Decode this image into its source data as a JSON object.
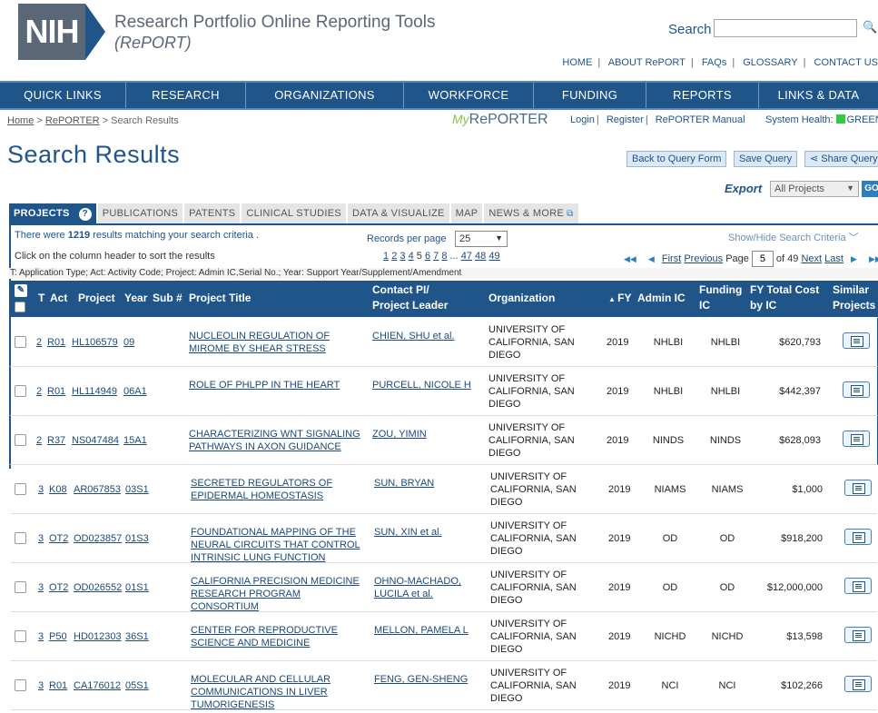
{
  "header": {
    "logo_text": "NIH",
    "title": "Research Portfolio Online Reporting Tools",
    "subtitle": "(RePORT)",
    "search_label": "Search",
    "search_placeholder": "",
    "links": [
      "HOME",
      "ABOUT RePORT",
      "FAQs",
      "GLOSSARY",
      "CONTACT US"
    ]
  },
  "nav": [
    "QUICK LINKS",
    "RESEARCH",
    "ORGANIZATIONS",
    "WORKFORCE",
    "FUNDING",
    "REPORTS",
    "LINKS & DATA"
  ],
  "breadcrumb": {
    "home": "Home",
    "reporter": "RePORTER",
    "current": "Search Results",
    "sep": ">"
  },
  "myreporter": {
    "my": "My",
    "name": "RePORTER"
  },
  "account": {
    "login": "Login",
    "register": "Register",
    "manual": "RePORTER Manual",
    "health": "System Health:",
    "health_status": "GREEN",
    "health_color": "#2ecc40"
  },
  "page_title": "Search Results",
  "buttons": {
    "back": "Back to Query Form",
    "save": "Save Query",
    "share": "Share Query"
  },
  "export": {
    "label": "Export",
    "selected": "All Projects",
    "go": "GO"
  },
  "tabs": [
    "PROJECTS",
    "PUBLICATIONS",
    "PATENTS",
    "CLINICAL STUDIES",
    "DATA & VISUALIZE",
    "MAP",
    "NEWS & MORE"
  ],
  "results": {
    "pre": "There were ",
    "count": "1219",
    "post": " results matching your search criteria",
    "sort_hint": "Click on the column header to sort the results",
    "records_label": "Records per page",
    "records_value": "25",
    "show_hide": "Show/Hide Search Criteria",
    "legend": "T: Application Type; Act: Activity Code; Project: Admin IC,Serial No.; Year: Support Year/Supplement/Amendment"
  },
  "pages": {
    "list": [
      "1",
      "2",
      "3",
      "4",
      "5",
      "6",
      "7",
      "8"
    ],
    "current": "5",
    "ellipsis": "...",
    "tail": [
      "47",
      "48",
      "49"
    ]
  },
  "pager": {
    "first": "First",
    "previous": "Previous",
    "page_label": "Page",
    "page_value": "5",
    "of": "of 49",
    "next": "Next",
    "last": "Last"
  },
  "columns": {
    "t": "T",
    "act": "Act",
    "project": "Project",
    "year": "Year",
    "sub": "Sub #",
    "title": "Project Title",
    "pi_1": "Contact PI/",
    "pi_2": "Project Leader",
    "org": "Organization",
    "fy": "FY",
    "admin": "Admin IC",
    "funding_1": "Funding",
    "funding_2": "IC",
    "cost_1": "FY Total Cost",
    "cost_2": "by IC",
    "similar_1": "Similar",
    "similar_2": "Projects"
  },
  "rows": [
    {
      "t": "2",
      "act": "R01",
      "project": "HL106579",
      "year": "09",
      "title": "NUCLEOLIN REGULATION OF MIROME BY SHEAR STRESS",
      "pi": "CHIEN, SHU et al.",
      "org": "UNIVERSITY OF CALIFORNIA, SAN DIEGO",
      "fy": "2019",
      "admin": "NHLBI",
      "funding": "NHLBI",
      "cost": "$620,793"
    },
    {
      "t": "2",
      "act": "R01",
      "project": "HL114949",
      "year": "06A1",
      "title": "ROLE OF PHLPP IN THE HEART",
      "pi": "PURCELL, NICOLE H",
      "org": "UNIVERSITY OF CALIFORNIA, SAN DIEGO",
      "fy": "2019",
      "admin": "NHLBI",
      "funding": "NHLBI",
      "cost": "$442,397"
    },
    {
      "t": "2",
      "act": "R37",
      "project": "NS047484",
      "year": "15A1",
      "title": "CHARACTERIZING WNT SIGNALING PATHWAYS IN AXON GUIDANCE",
      "pi": "ZOU, YIMIN",
      "org": "UNIVERSITY OF CALIFORNIA, SAN DIEGO",
      "fy": "2019",
      "admin": "NINDS",
      "funding": "NINDS",
      "cost": "$628,093"
    },
    {
      "t": "3",
      "act": "K08",
      "project": "AR067853",
      "year": "03S1",
      "title": "SECRETED REGULATORS OF EPIDERMAL HOMEOSTASIS",
      "pi": "SUN, BRYAN",
      "org": "UNIVERSITY OF CALIFORNIA, SAN DIEGO",
      "fy": "2019",
      "admin": "NIAMS",
      "funding": "NIAMS",
      "cost": "$1,000"
    },
    {
      "t": "3",
      "act": "OT2",
      "project": "OD023857",
      "year": "01S3",
      "title": "FOUNDATIONAL MAPPING OF THE NEURAL CIRCUITS THAT CONTROL INTRINSIC LUNG FUNCTION",
      "pi": "SUN, XIN et al.",
      "org": "UNIVERSITY OF CALIFORNIA, SAN DIEGO",
      "fy": "2019",
      "admin": "OD",
      "funding": "OD",
      "cost": "$918,200"
    },
    {
      "t": "3",
      "act": "OT2",
      "project": "OD026552",
      "year": "01S1",
      "title": "CALIFORNIA PRECISION MEDICINE RESEARCH PROGRAM CONSORTIUM",
      "pi": "OHNO-MACHADO, LUCILA et al.",
      "org": "UNIVERSITY OF CALIFORNIA, SAN DIEGO",
      "fy": "2019",
      "admin": "OD",
      "funding": "OD",
      "cost": "$12,000,000"
    },
    {
      "t": "3",
      "act": "P50",
      "project": "HD012303",
      "year": "36S1",
      "title": "CENTER FOR REPRODUCTIVE SCIENCE AND MEDICINE",
      "pi": "MELLON, PAMELA L",
      "org": "UNIVERSITY OF CALIFORNIA, SAN DIEGO",
      "fy": "2019",
      "admin": "NICHD",
      "funding": "NICHD",
      "cost": "$13,598"
    },
    {
      "t": "3",
      "act": "R01",
      "project": "CA176012",
      "year": "05S1",
      "title": "MOLECULAR AND CELLULAR COMMUNICATIONS IN LIVER TUMORIGENESIS",
      "pi": "FENG, GEN-SHENG",
      "org": "UNIVERSITY OF CALIFORNIA, SAN DIEGO",
      "fy": "2019",
      "admin": "NCI",
      "funding": "NCI",
      "cost": "$102,266"
    }
  ]
}
